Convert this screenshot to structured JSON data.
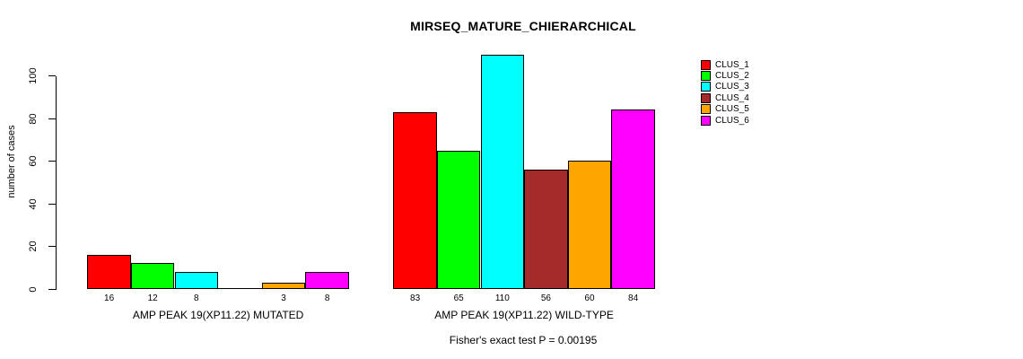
{
  "chart_data": {
    "type": "bar",
    "title": "MIRSEQ_MATURE_CHIERARCHICAL",
    "ylabel": "number of cases",
    "xlabel": "",
    "footer": "Fisher's exact test P = 0.00195",
    "yticks": [
      0,
      20,
      40,
      60,
      80,
      100
    ],
    "ylim": [
      0,
      100
    ],
    "grid": false,
    "legend_position": "right",
    "bar_value_labels": true,
    "series_names": [
      "CLUS_1",
      "CLUS_2",
      "CLUS_3",
      "CLUS_4",
      "CLUS_5",
      "CLUS_6"
    ],
    "colors": [
      "#ff0000",
      "#00ff00",
      "#00ffff",
      "#a52a2a",
      "#ffa500",
      "#ff00ff"
    ],
    "groups": [
      {
        "label": "AMP PEAK 19(XP11.22) MUTATED",
        "values": [
          16,
          12,
          8,
          0,
          3,
          8
        ]
      },
      {
        "label": "AMP PEAK 19(XP11.22) WILD-TYPE",
        "values": [
          83,
          65,
          110,
          56,
          60,
          84
        ]
      }
    ],
    "axis_color": "#000000",
    "bar_border_color": "#000000",
    "background_color": "#ffffff"
  }
}
